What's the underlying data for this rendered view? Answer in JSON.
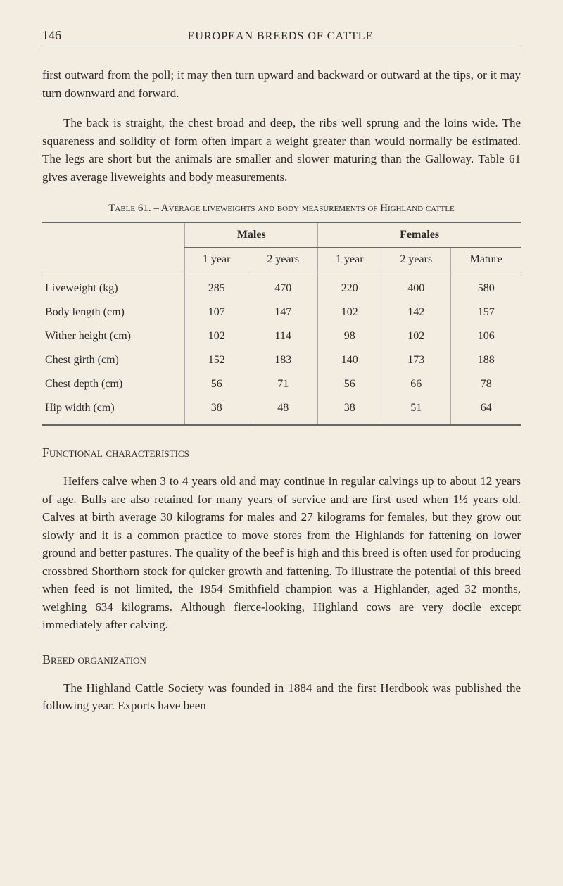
{
  "page_number": "146",
  "running_title": "EUROPEAN BREEDS OF CATTLE",
  "paragraph1": "first outward from the poll; it may then turn upward and backward or outward at the tips, or it may turn downward and forward.",
  "paragraph2_indent": "The back is straight, the chest broad and deep, the ribs well sprung and the loins wide. The squareness and solidity of form often impart a weight greater than would normally be estimated. The legs are short but the animals are smaller and slower maturing than the Galloway. Table 61 gives average liveweights and body measurements.",
  "table_caption": "Table 61. – Average liveweights and body measurements of Highland cattle",
  "table": {
    "group_headers": [
      "Males",
      "Females"
    ],
    "group_spans": [
      2,
      3
    ],
    "sub_headers": [
      "1 year",
      "2 years",
      "1 year",
      "2 years",
      "Mature"
    ],
    "rows": [
      {
        "label": "Liveweight (kg)",
        "values": [
          "285",
          "470",
          "220",
          "400",
          "580"
        ]
      },
      {
        "label": "Body length (cm)",
        "values": [
          "107",
          "147",
          "102",
          "142",
          "157"
        ]
      },
      {
        "label": "Wither height (cm)",
        "values": [
          "102",
          "114",
          "98",
          "102",
          "106"
        ]
      },
      {
        "label": "Chest girth (cm)",
        "values": [
          "152",
          "183",
          "140",
          "173",
          "188"
        ]
      },
      {
        "label": "Chest depth (cm)",
        "values": [
          "56",
          "71",
          "56",
          "66",
          "78"
        ]
      },
      {
        "label": "Hip width (cm)",
        "values": [
          "38",
          "48",
          "38",
          "51",
          "64"
        ]
      }
    ]
  },
  "section1_heading": "Functional characteristics",
  "section1_body": "Heifers calve when 3 to 4 years old and may continue in regular calvings up to about 12 years of age. Bulls are also retained for many years of service and are first used when 1½ years old. Calves at birth average 30 kilograms for males and 27 kilograms for females, but they grow out slowly and it is a common practice to move stores from the Highlands for fattening on lower ground and better pastures. The quality of the beef is high and this breed is often used for producing crossbred Shorthorn stock for quicker growth and fattening. To illustrate the potential of this breed when feed is not limited, the 1954 Smithfield champion was a Highlander, aged 32 months, weighing 634 kilograms. Although fierce-looking, Highland cows are very docile except immediately after calving.",
  "section2_heading": "Breed organization",
  "section2_body": "The Highland Cattle Society was founded in 1884 and the first Herdbook was published the following year. Exports have been"
}
